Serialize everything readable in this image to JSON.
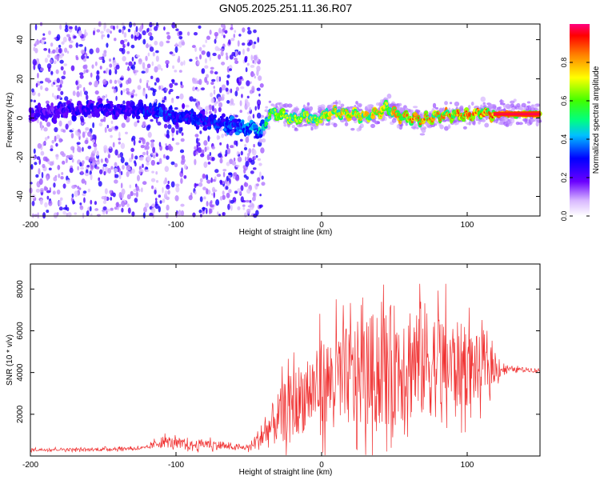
{
  "title": "GN05.2025.251.11.36.R07",
  "chart_data": [
    {
      "type": "heatmap",
      "xlabel": "Height of straight line (km)",
      "ylabel": "Frequency (Hz)",
      "xlim": [
        -200,
        150
      ],
      "ylim": [
        -50,
        48
      ],
      "xticks": [
        -200,
        -100,
        0,
        100
      ],
      "yticks": [
        -40,
        -20,
        0,
        20,
        40
      ],
      "colorbar": {
        "label": "Normalized spectral amplitude",
        "range": [
          0,
          1
        ],
        "ticks": [
          0.0,
          0.2,
          0.4,
          0.6,
          0.8
        ]
      },
      "ridge": {
        "x": [
          -200,
          -160,
          -130,
          -110,
          -100,
          -80,
          -60,
          -50,
          -40,
          -36,
          -30,
          -25,
          -20,
          -15,
          -10,
          -5,
          0,
          5,
          10,
          20,
          30,
          40,
          45,
          50,
          60,
          70,
          80,
          90,
          100,
          110,
          115,
          120,
          130,
          140,
          150
        ],
        "y": [
          2,
          5,
          4,
          3,
          1,
          -1,
          -4,
          -5,
          -7,
          3,
          2,
          1,
          -1,
          0,
          2,
          -2,
          1,
          2,
          3,
          2,
          1,
          3,
          6,
          2,
          0,
          -1,
          1,
          2,
          1,
          3,
          2,
          2,
          2,
          2,
          2
        ],
        "amplitude": [
          0.25,
          0.3,
          0.3,
          0.4,
          0.35,
          0.35,
          0.4,
          0.45,
          0.5,
          0.65,
          0.7,
          0.72,
          0.7,
          0.72,
          0.75,
          0.7,
          0.75,
          0.78,
          0.8,
          0.8,
          0.8,
          0.82,
          0.72,
          0.85,
          0.88,
          0.88,
          0.86,
          0.88,
          0.9,
          0.9,
          0.9,
          0.95,
          0.95,
          0.95,
          0.95
        ]
      }
    },
    {
      "type": "line",
      "xlabel": "Height of straight line (km)",
      "ylabel": "SNR (10 * v/v)",
      "xlim": [
        -200,
        150
      ],
      "ylim": [
        0,
        9200
      ],
      "xticks": [
        -200,
        -100,
        0,
        100
      ],
      "yticks": [
        2000,
        4000,
        6000,
        8000
      ],
      "color": "#f03030",
      "series": [
        {
          "x": [
            -200,
            -180,
            -160,
            -140,
            -120,
            -110,
            -100,
            -90,
            -80,
            -70,
            -60,
            -50,
            -40,
            -30,
            -20,
            -10,
            0,
            10,
            20,
            30,
            40,
            50,
            60,
            70,
            80,
            90,
            100,
            110,
            120,
            130,
            140,
            150
          ],
          "y": [
            300,
            320,
            300,
            350,
            380,
            700,
            600,
            500,
            600,
            500,
            400,
            400,
            1000,
            1800,
            2500,
            3000,
            3400,
            3700,
            3800,
            4000,
            4200,
            4400,
            4600,
            4600,
            4400,
            4300,
            4300,
            4200,
            4200,
            4150,
            4150,
            4100
          ],
          "spread": [
            100,
            100,
            100,
            120,
            120,
            400,
            350,
            300,
            350,
            300,
            150,
            200,
            1000,
            1800,
            2300,
            2600,
            3000,
            3300,
            3500,
            3800,
            4000,
            4200,
            4300,
            4100,
            3600,
            3200,
            2800,
            2000,
            800,
            150,
            150,
            150
          ]
        }
      ]
    }
  ]
}
